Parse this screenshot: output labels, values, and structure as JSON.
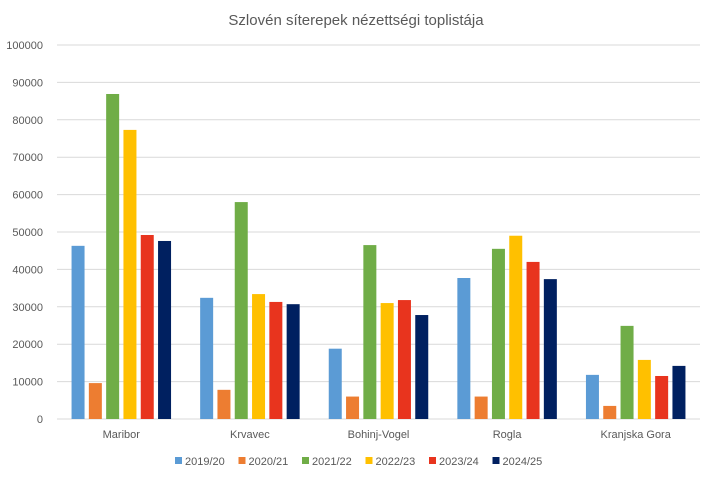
{
  "chart_data": {
    "type": "bar",
    "title": "Szlovén síterepek nézettségi toplistája",
    "xlabel": "",
    "ylabel": "",
    "ylim": [
      0,
      100000
    ],
    "yticks": [
      0,
      10000,
      20000,
      30000,
      40000,
      50000,
      60000,
      70000,
      80000,
      90000,
      100000
    ],
    "grid": true,
    "legend_position": "bottom",
    "categories": [
      "Maribor",
      "Krvavec",
      "Bohinj-Vogel",
      "Rogla",
      "Kranjska Gora"
    ],
    "series": [
      {
        "name": "2019/20",
        "color": "#5B9BD5",
        "values": [
          46300,
          32400,
          18800,
          37700,
          11800
        ]
      },
      {
        "name": "2020/21",
        "color": "#ED7D31",
        "values": [
          9600,
          7800,
          6000,
          6000,
          3500
        ]
      },
      {
        "name": "2021/22",
        "color": "#70AD47",
        "values": [
          86900,
          58000,
          46500,
          45500,
          24900
        ]
      },
      {
        "name": "2022/23",
        "color": "#FFC000",
        "values": [
          77300,
          33400,
          31000,
          49000,
          15800
        ]
      },
      {
        "name": "2023/24",
        "color": "#E8341E",
        "values": [
          49200,
          31300,
          31800,
          42000,
          11500
        ]
      },
      {
        "name": "2024/25",
        "color": "#002060",
        "values": [
          47600,
          30700,
          27800,
          37400,
          14200
        ]
      }
    ]
  }
}
